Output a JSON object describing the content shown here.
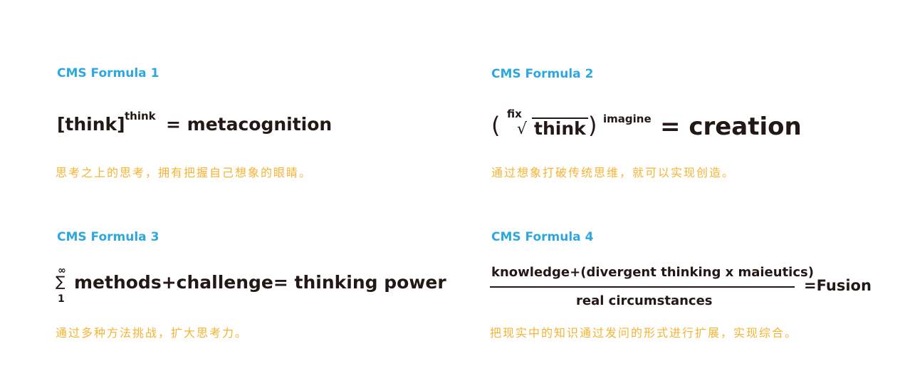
{
  "formulas": [
    {
      "title": "CMS Formula 1",
      "base": "[think]",
      "exponent": "think",
      "result": "=  metacognition",
      "description": "思考之上的思考，拥有把握自己想象的眼睛。"
    },
    {
      "title": "CMS Formula 2",
      "open_paren": "(",
      "root_index": "fix",
      "radical": "√",
      "radicand": "think",
      "close_paren": ")",
      "exponent": "imagine",
      "result": "= creation",
      "description": "通过想象打破传统思维，就可以实现创造。"
    },
    {
      "title": "CMS Formula 3",
      "sum_upper": "∞",
      "sum_symbol": "∑",
      "sum_lower": "1",
      "body": "methods+challenge= thinking power",
      "description": "通过多种方法挑战，扩大思考力。"
    },
    {
      "title": "CMS Formula 4",
      "numerator": "knowledge+(divergent thinking x maieutics)",
      "denominator": "real  circumstances",
      "result": "=Fusion",
      "description": "把现实中的知识通过发问的形式进行扩展，实现综合。"
    }
  ]
}
